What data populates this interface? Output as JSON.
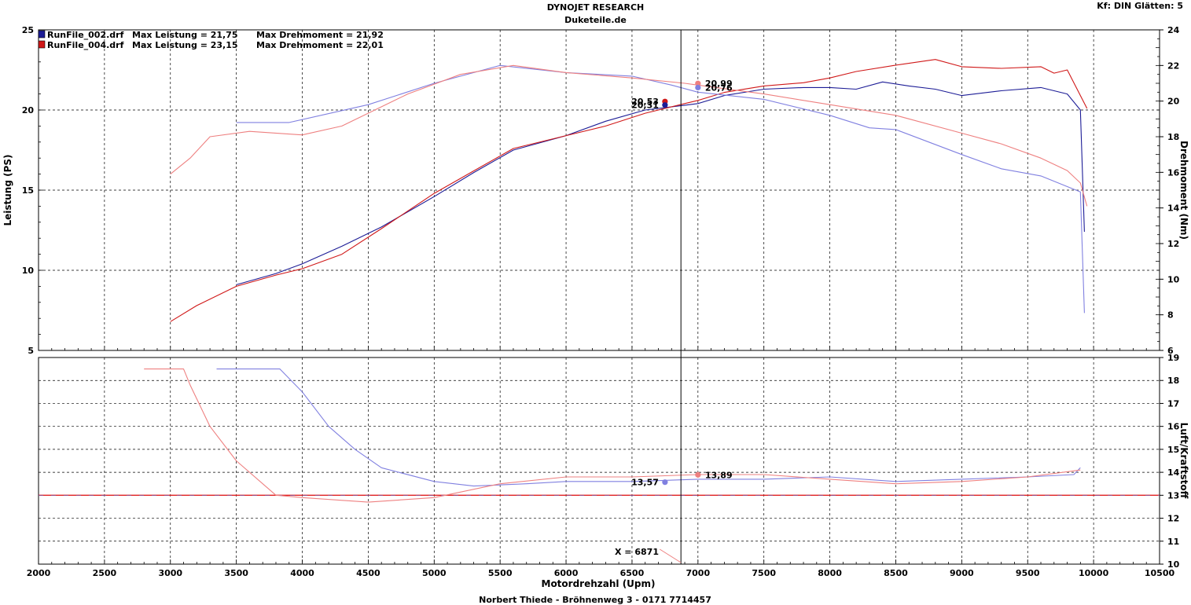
{
  "header": {
    "title": "DYNOJET RESEARCH",
    "subtitle": "Duketeile.de",
    "settings": "Kf: DIN  Glätten: 5"
  },
  "footer": {
    "xlabel": "Motordrehzahl (Upm)",
    "credit": "Norbert Thiede - Bröhnenweg 3 - 0171 7714457"
  },
  "colors": {
    "run002_dark": "#1c1c96",
    "run002_light": "#8080e0",
    "run004_dark": "#d01818",
    "run004_light": "#ee8080",
    "grid": "#000000",
    "cursor": "#000000"
  },
  "legend": [
    {
      "file": "RunFile_002.drf",
      "leistung": "Max Leistung = 21,75",
      "drehmoment": "Max Drehmoment = 21,92"
    },
    {
      "file": "RunFile_004.drf",
      "leistung": "Max Leistung = 23,15",
      "drehmoment": "Max Drehmoment = 22,01"
    }
  ],
  "cursor": {
    "label": "X = 6871",
    "rpm": 6871
  },
  "chart_data": [
    {
      "type": "line",
      "name": "power-torque",
      "xlabel": "Motordrehzahl (Upm)",
      "ylabel": "Leistung (PS)",
      "y2label": "Drehmoment (Nm)",
      "xlim": [
        2000,
        10500
      ],
      "xticks": [
        2000,
        2500,
        3000,
        3500,
        4000,
        4500,
        5000,
        5500,
        6000,
        6500,
        7000,
        7500,
        8000,
        8500,
        9000,
        9500,
        10000,
        10500
      ],
      "ylim": [
        5,
        25
      ],
      "yticks": [
        5,
        10,
        15,
        20,
        25
      ],
      "y2lim": [
        6,
        24
      ],
      "y2ticks": [
        6,
        8,
        10,
        12,
        14,
        16,
        18,
        20,
        22,
        24
      ],
      "series": [
        {
          "name": "RunFile_002.drf Leistung",
          "axis": "left",
          "style": "dark-blue",
          "x": [
            3500,
            3800,
            4000,
            4300,
            4600,
            5000,
            5300,
            5600,
            6000,
            6300,
            6600,
            6900,
            7000,
            7200,
            7500,
            7800,
            8000,
            8200,
            8400,
            8600,
            8800,
            9000,
            9300,
            9600,
            9800,
            9900,
            9930
          ],
          "y": [
            9.1,
            9.8,
            10.4,
            11.5,
            12.7,
            14.6,
            16.1,
            17.5,
            18.4,
            19.3,
            20.0,
            20.3,
            20.4,
            20.9,
            21.3,
            21.4,
            21.4,
            21.3,
            21.75,
            21.5,
            21.3,
            20.9,
            21.2,
            21.4,
            21.0,
            20.0,
            12.4
          ]
        },
        {
          "name": "RunFile_004.drf Leistung",
          "axis": "left",
          "style": "dark-red",
          "x": [
            3000,
            3200,
            3500,
            3800,
            4000,
            4300,
            4600,
            5000,
            5300,
            5600,
            6000,
            6300,
            6600,
            6900,
            7000,
            7200,
            7500,
            7800,
            8000,
            8200,
            8500,
            8800,
            9000,
            9300,
            9600,
            9700,
            9800,
            9950
          ],
          "y": [
            6.8,
            7.8,
            9.0,
            9.7,
            10.1,
            11.0,
            12.6,
            14.8,
            16.2,
            17.6,
            18.4,
            19.0,
            19.8,
            20.4,
            20.6,
            21.1,
            21.5,
            21.7,
            22.0,
            22.4,
            22.8,
            23.15,
            22.7,
            22.6,
            22.7,
            22.3,
            22.5,
            20.1
          ]
        },
        {
          "name": "RunFile_002.drf Drehmoment",
          "axis": "right",
          "style": "light-blue",
          "x": [
            3500,
            3900,
            4500,
            5000,
            5500,
            6000,
            6500,
            6800,
            7000,
            7500,
            8000,
            8300,
            8500,
            9000,
            9300,
            9600,
            9900,
            9930
          ],
          "y": [
            18.8,
            18.8,
            19.8,
            21.0,
            22.0,
            21.6,
            21.4,
            20.9,
            20.5,
            20.1,
            19.2,
            18.5,
            18.4,
            17.0,
            16.2,
            15.8,
            14.9,
            8.1
          ]
        },
        {
          "name": "RunFile_004.drf Drehmoment",
          "axis": "right",
          "style": "light-red",
          "x": [
            3000,
            3150,
            3300,
            3600,
            4000,
            4300,
            4800,
            5200,
            5600,
            6000,
            6500,
            6900,
            7000,
            7500,
            8000,
            8500,
            9000,
            9300,
            9600,
            9800,
            9900,
            9950
          ],
          "y": [
            15.9,
            16.8,
            18.0,
            18.3,
            18.1,
            18.6,
            20.4,
            21.5,
            22.0,
            21.6,
            21.3,
            21.0,
            20.9,
            20.4,
            19.8,
            19.2,
            18.2,
            17.6,
            16.8,
            16.1,
            15.4,
            14.1
          ]
        }
      ],
      "markers": [
        {
          "label": "20,99",
          "axis": "right",
          "x": 7000,
          "y": 20.99,
          "style": "light-red",
          "label_side": "right"
        },
        {
          "label": "20,76",
          "axis": "right",
          "x": 7000,
          "y": 20.76,
          "style": "light-blue",
          "label_side": "right"
        },
        {
          "label": "20,53",
          "axis": "left",
          "x": 6750,
          "y": 20.53,
          "style": "dark-red",
          "label_side": "left"
        },
        {
          "label": "20,31",
          "axis": "left",
          "x": 6750,
          "y": 20.31,
          "style": "dark-blue",
          "label_side": "left"
        }
      ]
    },
    {
      "type": "line",
      "name": "air-fuel",
      "xlabel": "Motordrehzahl (Upm)",
      "y2label": "Luft/Kraftstoff",
      "xlim": [
        2000,
        10500
      ],
      "xticks": [
        2000,
        2500,
        3000,
        3500,
        4000,
        4500,
        5000,
        5500,
        6000,
        6500,
        7000,
        7500,
        8000,
        8500,
        9000,
        9500,
        10000,
        10500
      ],
      "y2lim": [
        10,
        19
      ],
      "y2ticks": [
        10,
        11,
        12,
        13,
        14,
        15,
        16,
        17,
        18,
        19
      ],
      "reference_line": 13.0,
      "series": [
        {
          "name": "RunFile_002.drf Luft/Kraftstoff",
          "axis": "right",
          "style": "light-blue",
          "x": [
            3350,
            3830,
            4000,
            4200,
            4400,
            4600,
            5000,
            5300,
            5700,
            6000,
            6500,
            7000,
            7500,
            8000,
            8500,
            9000,
            9500,
            9850,
            9900
          ],
          "y": [
            18.5,
            18.5,
            17.5,
            16.0,
            15.0,
            14.2,
            13.6,
            13.4,
            13.5,
            13.6,
            13.6,
            13.7,
            13.7,
            13.8,
            13.6,
            13.7,
            13.8,
            13.9,
            14.2
          ]
        },
        {
          "name": "RunFile_004.drf Luft/Kraftstoff",
          "axis": "right",
          "style": "light-red",
          "x": [
            2800,
            3100,
            3150,
            3300,
            3500,
            3800,
            4000,
            4500,
            5000,
            5500,
            6000,
            6500,
            7000,
            7500,
            8000,
            8500,
            9000,
            9500,
            9900
          ],
          "y": [
            18.5,
            18.5,
            17.8,
            16.0,
            14.5,
            13.0,
            12.9,
            12.7,
            12.9,
            13.5,
            13.8,
            13.8,
            13.9,
            13.9,
            13.7,
            13.5,
            13.6,
            13.8,
            14.1
          ]
        }
      ],
      "markers": [
        {
          "label": "13,89",
          "axis": "right",
          "x": 7000,
          "y": 13.89,
          "style": "light-red",
          "label_side": "right"
        },
        {
          "label": "13,57",
          "axis": "right",
          "x": 6750,
          "y": 13.57,
          "style": "light-blue",
          "label_side": "left"
        }
      ]
    }
  ]
}
